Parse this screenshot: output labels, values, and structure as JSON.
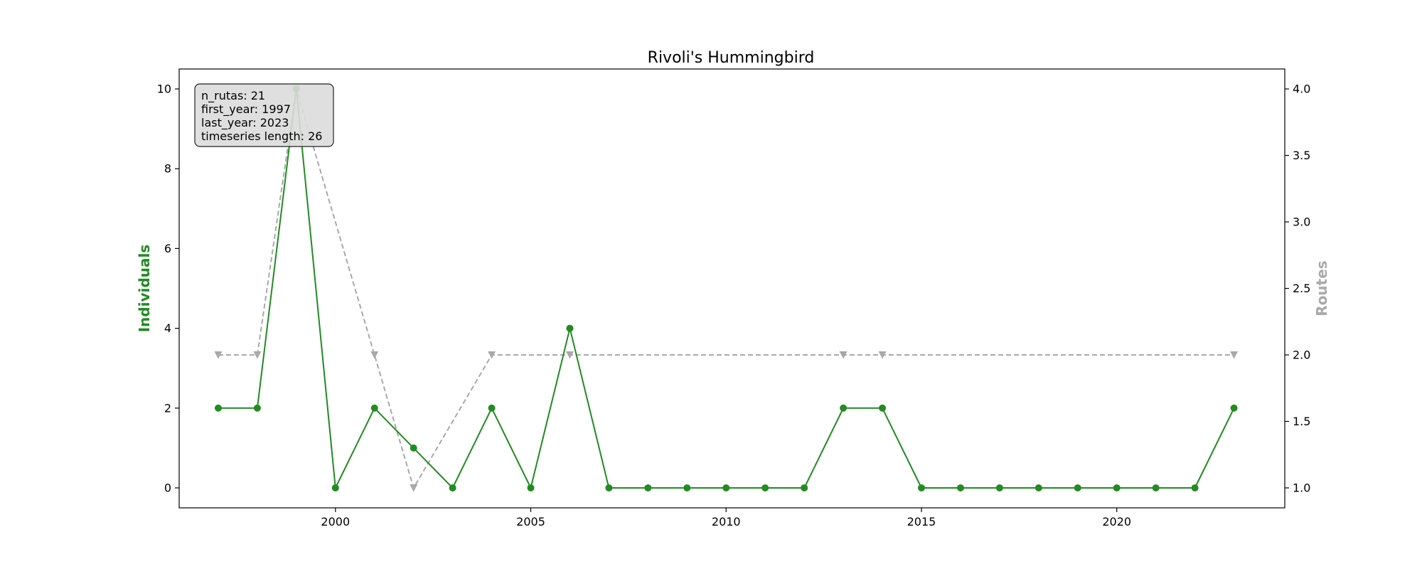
{
  "chart_data": {
    "type": "line",
    "title": "Rivoli's Hummingbird",
    "xlabel": "",
    "ylabel_left": "Individuals",
    "ylabel_right": "Routes",
    "xlim": [
      1996,
      2024.3
    ],
    "ylim_left": [
      -0.5,
      10.5
    ],
    "ylim_right": [
      0.85,
      4.15
    ],
    "x_ticks": [
      2000,
      2005,
      2010,
      2015,
      2020
    ],
    "y_left_ticks": [
      0,
      2,
      4,
      6,
      8,
      10
    ],
    "y_right_ticks": [
      "1.0",
      "1.5",
      "2.0",
      "2.5",
      "3.0",
      "3.5",
      "4.0"
    ],
    "grid": false,
    "series": [
      {
        "name": "Individuals",
        "axis": "left",
        "color": "#228B22",
        "style": "solid",
        "marker": "circle",
        "x": [
          1997,
          1998,
          1999,
          2000,
          2001,
          2002,
          2003,
          2004,
          2005,
          2006,
          2007,
          2008,
          2009,
          2010,
          2011,
          2012,
          2013,
          2014,
          2015,
          2016,
          2017,
          2018,
          2019,
          2020,
          2021,
          2022,
          2023
        ],
        "values": [
          2,
          2,
          10,
          0,
          2,
          1,
          0,
          2,
          0,
          4,
          0,
          0,
          0,
          0,
          0,
          0,
          2,
          2,
          0,
          0,
          0,
          0,
          0,
          0,
          0,
          0,
          2
        ]
      },
      {
        "name": "Routes",
        "axis": "right",
        "color": "#A9A9A9",
        "style": "dashed",
        "marker": "triangle-down",
        "x": [
          1997,
          1998,
          1999,
          2001,
          2002,
          2004,
          2006,
          2013,
          2014,
          2023
        ],
        "values": [
          2,
          2,
          4,
          2,
          1,
          2,
          2,
          2,
          2,
          2
        ]
      }
    ],
    "info_box": {
      "lines": [
        "n_rutas: 21",
        "first_year: 1997",
        "last_year: 2023",
        "timeseries length: 26"
      ],
      "placement": "top-left"
    }
  }
}
